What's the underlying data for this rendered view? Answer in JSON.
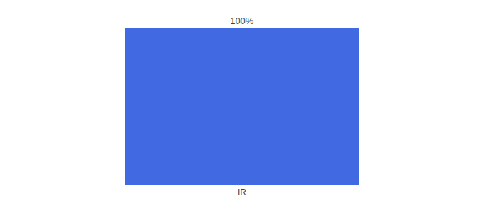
{
  "chart_data": {
    "type": "bar",
    "categories": [
      "IR"
    ],
    "values": [
      100
    ],
    "value_labels": [
      "100%"
    ],
    "color": "#4169e1",
    "ylim": [
      0,
      100
    ],
    "grid": false,
    "data_labels": true,
    "tick_labels": "x"
  }
}
